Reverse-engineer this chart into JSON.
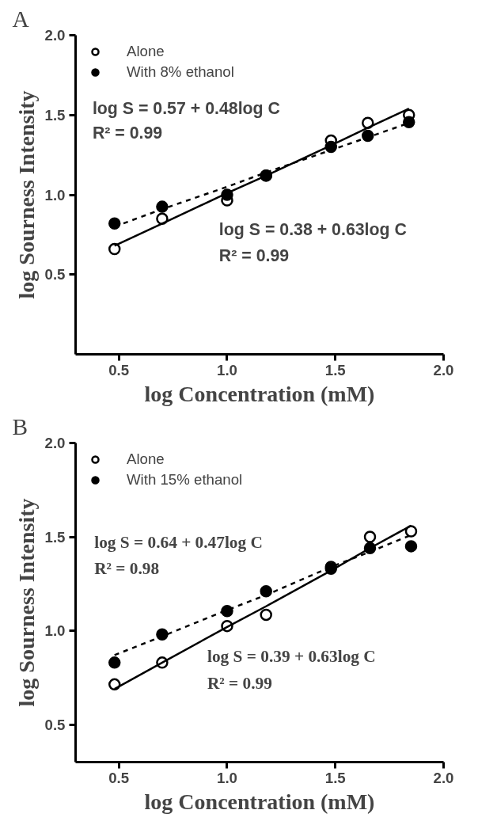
{
  "chart_data": [
    {
      "type": "scatter",
      "title": "A",
      "xlabel": "log Concentration (mM)",
      "ylabel": "log Sourness Intensity",
      "xlim": [
        0.3,
        2.0
      ],
      "ylim": [
        0.0,
        2.0
      ],
      "xticks": [
        {
          "value": 0.5,
          "label": "0.5"
        },
        {
          "value": 1.0,
          "label": "1.0"
        },
        {
          "value": 1.5,
          "label": "1.5"
        },
        {
          "value": 2.0,
          "label": "2.0"
        }
      ],
      "yticks": [
        {
          "value": 0.5,
          "label": "0.5"
        },
        {
          "value": 1.0,
          "label": "1.0"
        },
        {
          "value": 1.5,
          "label": "1.5"
        },
        {
          "value": 2.0,
          "label": "2.0"
        }
      ],
      "legend": "top left",
      "x": [
        0.48,
        0.7,
        1.0,
        1.18,
        1.48,
        1.65,
        1.84
      ],
      "series": [
        {
          "name": "Alone",
          "marker": "circle",
          "color": "#ffffff",
          "values": [
            0.66,
            0.85,
            0.965,
            1.12,
            1.34,
            1.45,
            1.5
          ]
        },
        {
          "name": "With 8% ethanol",
          "marker": "circle",
          "color": "#000000",
          "values": [
            0.82,
            0.925,
            1.0,
            1.12,
            1.3,
            1.37,
            1.455
          ]
        },
        {
          "type": "line",
          "color": "#000000",
          "line_style": "solid",
          "values": [
            0.68,
            0.82,
            1.01,
            1.12,
            1.31,
            1.42,
            1.54
          ]
        },
        {
          "type": "line",
          "color": "#000000",
          "line_style": "dashed",
          "values": [
            0.8,
            0.91,
            1.05,
            1.14,
            1.28,
            1.36,
            1.45
          ]
        }
      ],
      "annotations": [
        "log S = 0.57 + 0.48log C",
        "R² = 0.99",
        "log S = 0.38 + 0.63log C",
        "R² = 0.99"
      ]
    },
    {
      "type": "scatter",
      "title": "B",
      "xlabel": "log Concentration (mM)",
      "ylabel": "log Sourness Intensity",
      "xlim": [
        0.3,
        2.0
      ],
      "ylim": [
        0.3,
        2.0
      ],
      "xticks": [
        {
          "value": 0.5,
          "label": "0.5"
        },
        {
          "value": 1.0,
          "label": "1.0"
        },
        {
          "value": 1.5,
          "label": "1.5"
        },
        {
          "value": 2.0,
          "label": "2.0"
        }
      ],
      "yticks": [
        {
          "value": 0.5,
          "label": "0.5"
        },
        {
          "value": 1.0,
          "label": "1.0"
        },
        {
          "value": 1.5,
          "label": "1.5"
        },
        {
          "value": 2.0,
          "label": "2.0"
        }
      ],
      "legend": "top left",
      "x": [
        0.48,
        0.7,
        1.0,
        1.18,
        1.48,
        1.66,
        1.85
      ],
      "series": [
        {
          "name": "Alone",
          "marker": "circle",
          "color": "#ffffff",
          "values": [
            0.714,
            0.83,
            1.025,
            1.085,
            1.34,
            1.5,
            1.53
          ]
        },
        {
          "name": "With 15% ethanol",
          "marker": "circle",
          "color": "#000000",
          "values": [
            0.83,
            0.98,
            1.105,
            1.21,
            1.33,
            1.44,
            1.45
          ]
        },
        {
          "type": "line",
          "color": "#000000",
          "line_style": "solid",
          "values": [
            0.69,
            0.83,
            1.02,
            1.13,
            1.32,
            1.44,
            1.56
          ]
        },
        {
          "type": "line",
          "color": "#000000",
          "line_style": "dashed",
          "values": [
            0.87,
            0.97,
            1.11,
            1.19,
            1.34,
            1.42,
            1.51
          ]
        }
      ],
      "annotations": [
        "log S = 0.64 + 0.47log C",
        "R² = 0.98",
        "log S = 0.39 + 0.63log C",
        "R² = 0.99"
      ]
    }
  ]
}
